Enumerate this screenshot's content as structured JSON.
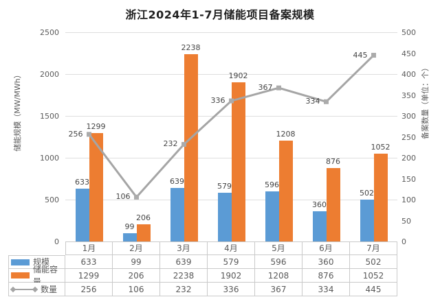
{
  "title": "浙江2024年1-7月储能项目备案规模",
  "colors": {
    "bar_scale": "#5b9bd5",
    "bar_capacity": "#ed7d31",
    "line_count": "#a5a5a5",
    "marker": "#ababab",
    "gridline": "#dedede",
    "table_border": "#c9c9c9",
    "axis_text": "#595959",
    "label_text": "#444444"
  },
  "chart_data": {
    "type": "bar",
    "subtype": "combo-bar-line-dual-axis",
    "title": "浙江2024年1-7月储能项目备案规模",
    "categories": [
      "1月",
      "2月",
      "3月",
      "4月",
      "5月",
      "6月",
      "7月"
    ],
    "series": [
      {
        "name": "规模",
        "type": "bar",
        "axis": "left",
        "color": "#5b9bd5",
        "values": [
          633,
          99,
          639,
          579,
          596,
          360,
          502
        ]
      },
      {
        "name": "储能容量",
        "type": "bar",
        "axis": "left",
        "color": "#ed7d31",
        "values": [
          1299,
          206,
          2238,
          1902,
          1208,
          876,
          1052
        ]
      },
      {
        "name": "数量",
        "type": "line",
        "axis": "right",
        "color": "#a5a5a5",
        "values": [
          256,
          106,
          232,
          336,
          367,
          334,
          445
        ]
      }
    ],
    "left_axis": {
      "label": "储能规模（MW/MWh）",
      "min": 0,
      "max": 2500,
      "step": 500
    },
    "right_axis": {
      "label": "备案数量（单位：个）",
      "min": 0,
      "max": 500,
      "step": 50
    },
    "grid": true,
    "data_labels": true,
    "legend_position": "data-table-left"
  }
}
